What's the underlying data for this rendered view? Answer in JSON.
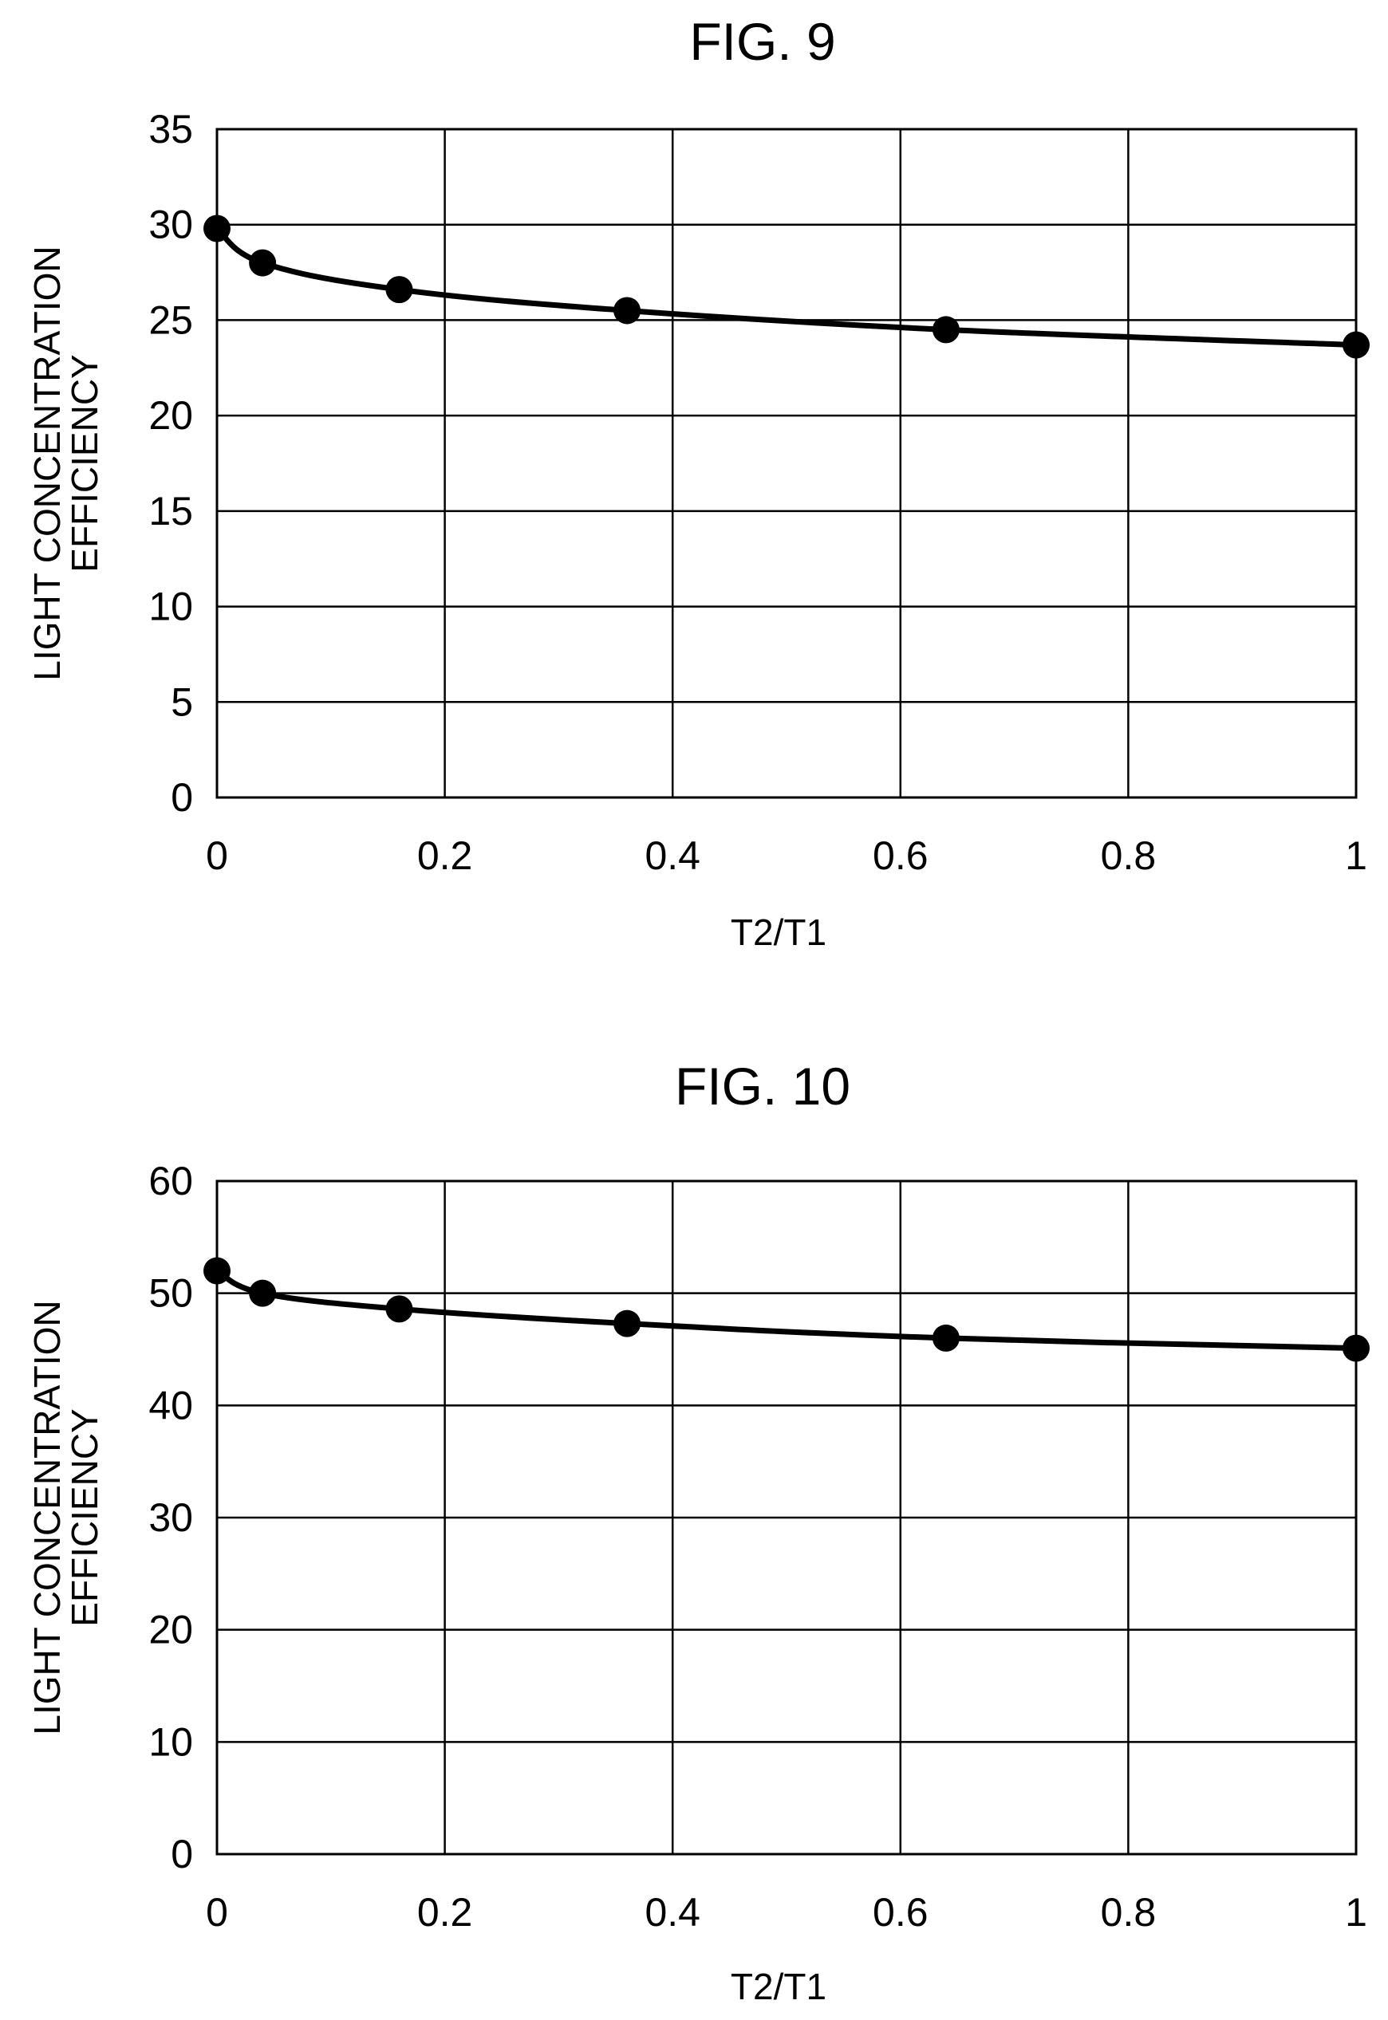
{
  "chart_data": [
    {
      "type": "line",
      "title": "FIG. 9",
      "xlabel": "T2/T1",
      "ylabel_lines": [
        "LIGHT CONCENTRATION",
        "EFFICIENCY"
      ],
      "xlim": [
        0,
        1
      ],
      "ylim": [
        0,
        35
      ],
      "xticks": [
        "0",
        "0.2",
        "0.4",
        "0.6",
        "0.8",
        "1"
      ],
      "yticks": [
        "0",
        "5",
        "10",
        "15",
        "20",
        "25",
        "30",
        "35"
      ],
      "grid": true,
      "series": [
        {
          "x": [
            0,
            0.04,
            0.16,
            0.36,
            0.64,
            1.0
          ],
          "y": [
            29.8,
            28.0,
            26.6,
            25.5,
            24.5,
            23.7
          ]
        }
      ]
    },
    {
      "type": "line",
      "title": "FIG. 10",
      "xlabel": "T2/T1",
      "ylabel_lines": [
        "LIGHT CONCENTRATION",
        "EFFICIENCY"
      ],
      "xlim": [
        0,
        1
      ],
      "ylim": [
        0,
        60
      ],
      "xticks": [
        "0",
        "0.2",
        "0.4",
        "0.6",
        "0.8",
        "1"
      ],
      "yticks": [
        "0",
        "10",
        "20",
        "30",
        "40",
        "50",
        "60"
      ],
      "grid": true,
      "series": [
        {
          "x": [
            0,
            0.04,
            0.16,
            0.36,
            0.64,
            1.0
          ],
          "y": [
            52.0,
            50.0,
            48.6,
            47.3,
            46.0,
            45.1
          ]
        }
      ]
    }
  ]
}
